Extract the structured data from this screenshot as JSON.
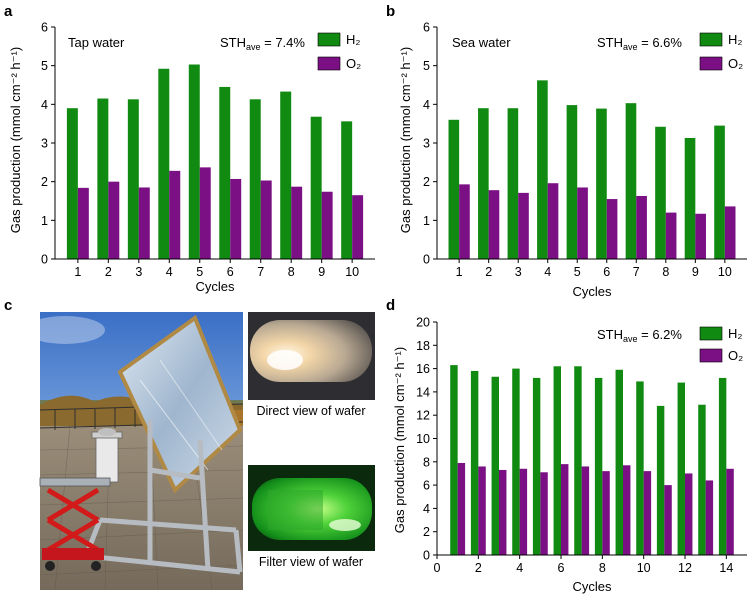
{
  "colors": {
    "h2": "#118a11",
    "o2": "#7a1084",
    "axis": "#000000"
  },
  "panel_labels": {
    "a": "a",
    "b": "b",
    "c": "c",
    "d": "d"
  },
  "photo": {
    "caption_direct": "Direct view of wafer",
    "caption_filter": "Filter view of wafer"
  },
  "chart_data": [
    {
      "id": "a",
      "type": "bar",
      "title": "Tap water",
      "annotation": "STH",
      "annotation_sub": "ave",
      "annotation_value": " = 7.4%",
      "xlabel": "Cycles",
      "ylabel": "Gas production (mmol cm⁻² h⁻¹)",
      "ylim": [
        0,
        6
      ],
      "yticks": [
        0,
        1,
        2,
        3,
        4,
        5,
        6
      ],
      "categories": [
        "1",
        "2",
        "3",
        "4",
        "5",
        "6",
        "7",
        "8",
        "9",
        "10"
      ],
      "legend": {
        "h2": "H₂",
        "o2": "O₂",
        "position": "top-right"
      },
      "series": [
        {
          "name": "H2",
          "values": [
            3.9,
            4.15,
            4.13,
            4.92,
            5.03,
            4.45,
            4.13,
            4.33,
            3.68,
            3.56
          ]
        },
        {
          "name": "O2",
          "values": [
            1.84,
            2.0,
            1.85,
            2.28,
            2.37,
            2.07,
            2.03,
            1.87,
            1.74,
            1.65
          ]
        }
      ]
    },
    {
      "id": "b",
      "type": "bar",
      "title": "Sea water",
      "annotation": "STH",
      "annotation_sub": "ave",
      "annotation_value": " = 6.6%",
      "xlabel": "Cycles",
      "ylabel": "Gas production (mmol cm⁻² h⁻¹)",
      "ylim": [
        0,
        6
      ],
      "yticks": [
        0,
        1,
        2,
        3,
        4,
        5,
        6
      ],
      "categories": [
        "1",
        "2",
        "3",
        "4",
        "5",
        "6",
        "7",
        "8",
        "9",
        "10"
      ],
      "legend": {
        "h2": "H₂",
        "o2": "O₂",
        "position": "top-right"
      },
      "series": [
        {
          "name": "H2",
          "values": [
            3.6,
            3.9,
            3.9,
            4.62,
            3.98,
            3.89,
            4.03,
            3.42,
            3.13,
            3.45
          ]
        },
        {
          "name": "O2",
          "values": [
            1.93,
            1.78,
            1.71,
            1.96,
            1.85,
            1.55,
            1.63,
            1.2,
            1.17,
            1.36
          ]
        }
      ]
    },
    {
      "id": "d",
      "type": "bar",
      "title": "",
      "annotation": "STH",
      "annotation_sub": "ave",
      "annotation_value": " = 6.2%",
      "xlabel": "Cycles",
      "ylabel": "Gas production (mmol cm⁻² h⁻¹)",
      "ylim": [
        0,
        20
      ],
      "xlim": [
        0,
        15
      ],
      "yticks": [
        0,
        2,
        4,
        6,
        8,
        10,
        12,
        14,
        16,
        18,
        20
      ],
      "xticks": [
        0,
        2,
        4,
        6,
        8,
        10,
        12,
        14
      ],
      "categories": [
        "1",
        "2",
        "3",
        "4",
        "5",
        "6",
        "7",
        "8",
        "9",
        "10",
        "11",
        "12",
        "13",
        "14"
      ],
      "legend": {
        "h2": "H₂",
        "o2": "O₂",
        "position": "top-right"
      },
      "series": [
        {
          "name": "H2",
          "values": [
            16.3,
            15.8,
            15.3,
            16.0,
            15.2,
            16.2,
            16.2,
            15.2,
            15.9,
            14.9,
            12.8,
            14.8,
            12.9,
            15.2
          ]
        },
        {
          "name": "O2",
          "values": [
            7.9,
            7.6,
            7.3,
            7.4,
            7.1,
            7.8,
            7.6,
            7.2,
            7.7,
            7.2,
            6.0,
            7.0,
            6.4,
            7.4
          ]
        }
      ]
    }
  ]
}
